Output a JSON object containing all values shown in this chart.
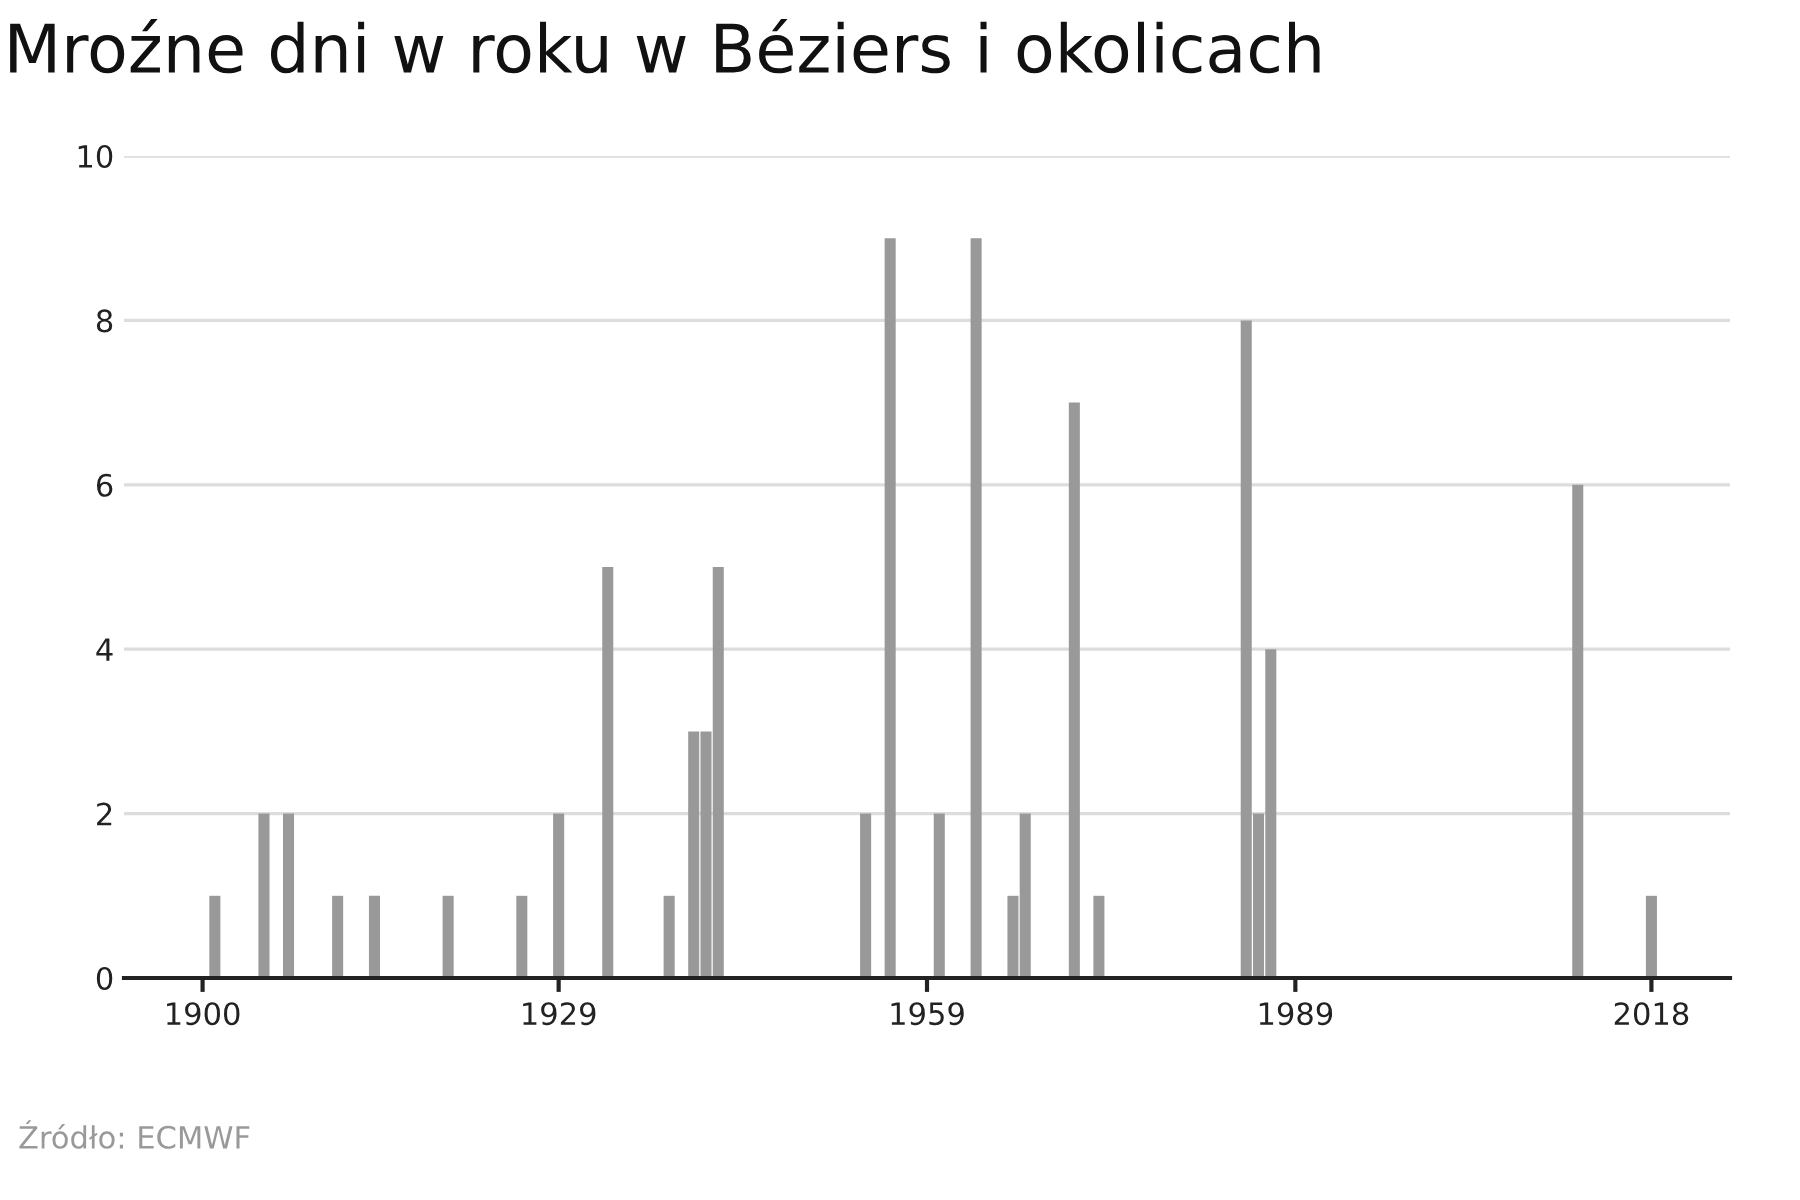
{
  "chart_data": {
    "type": "bar",
    "title": "Mroźne dni w roku w Béziers i okolicach",
    "x": [
      1901,
      1905,
      1907,
      1911,
      1914,
      1920,
      1926,
      1929,
      1933,
      1938,
      1940,
      1941,
      1942,
      1954,
      1956,
      1960,
      1963,
      1966,
      1967,
      1971,
      1973,
      1985,
      1986,
      1987,
      2012,
      2018
    ],
    "values": [
      1,
      2,
      2,
      1,
      1,
      1,
      1,
      2,
      5,
      1,
      3,
      3,
      5,
      2,
      9,
      2,
      9,
      1,
      2,
      7,
      1,
      8,
      2,
      4,
      6,
      1
    ],
    "color": "#999999",
    "xlim": [
      1893.6,
      2024.4
    ],
    "xticks": [
      1900,
      1929,
      1959,
      1989,
      2018
    ],
    "ylim": [
      0,
      10
    ],
    "yticks": [
      0,
      2,
      4,
      6,
      8,
      10
    ],
    "grid": "y",
    "annotations": [
      "Źródło: ECMWF"
    ]
  }
}
